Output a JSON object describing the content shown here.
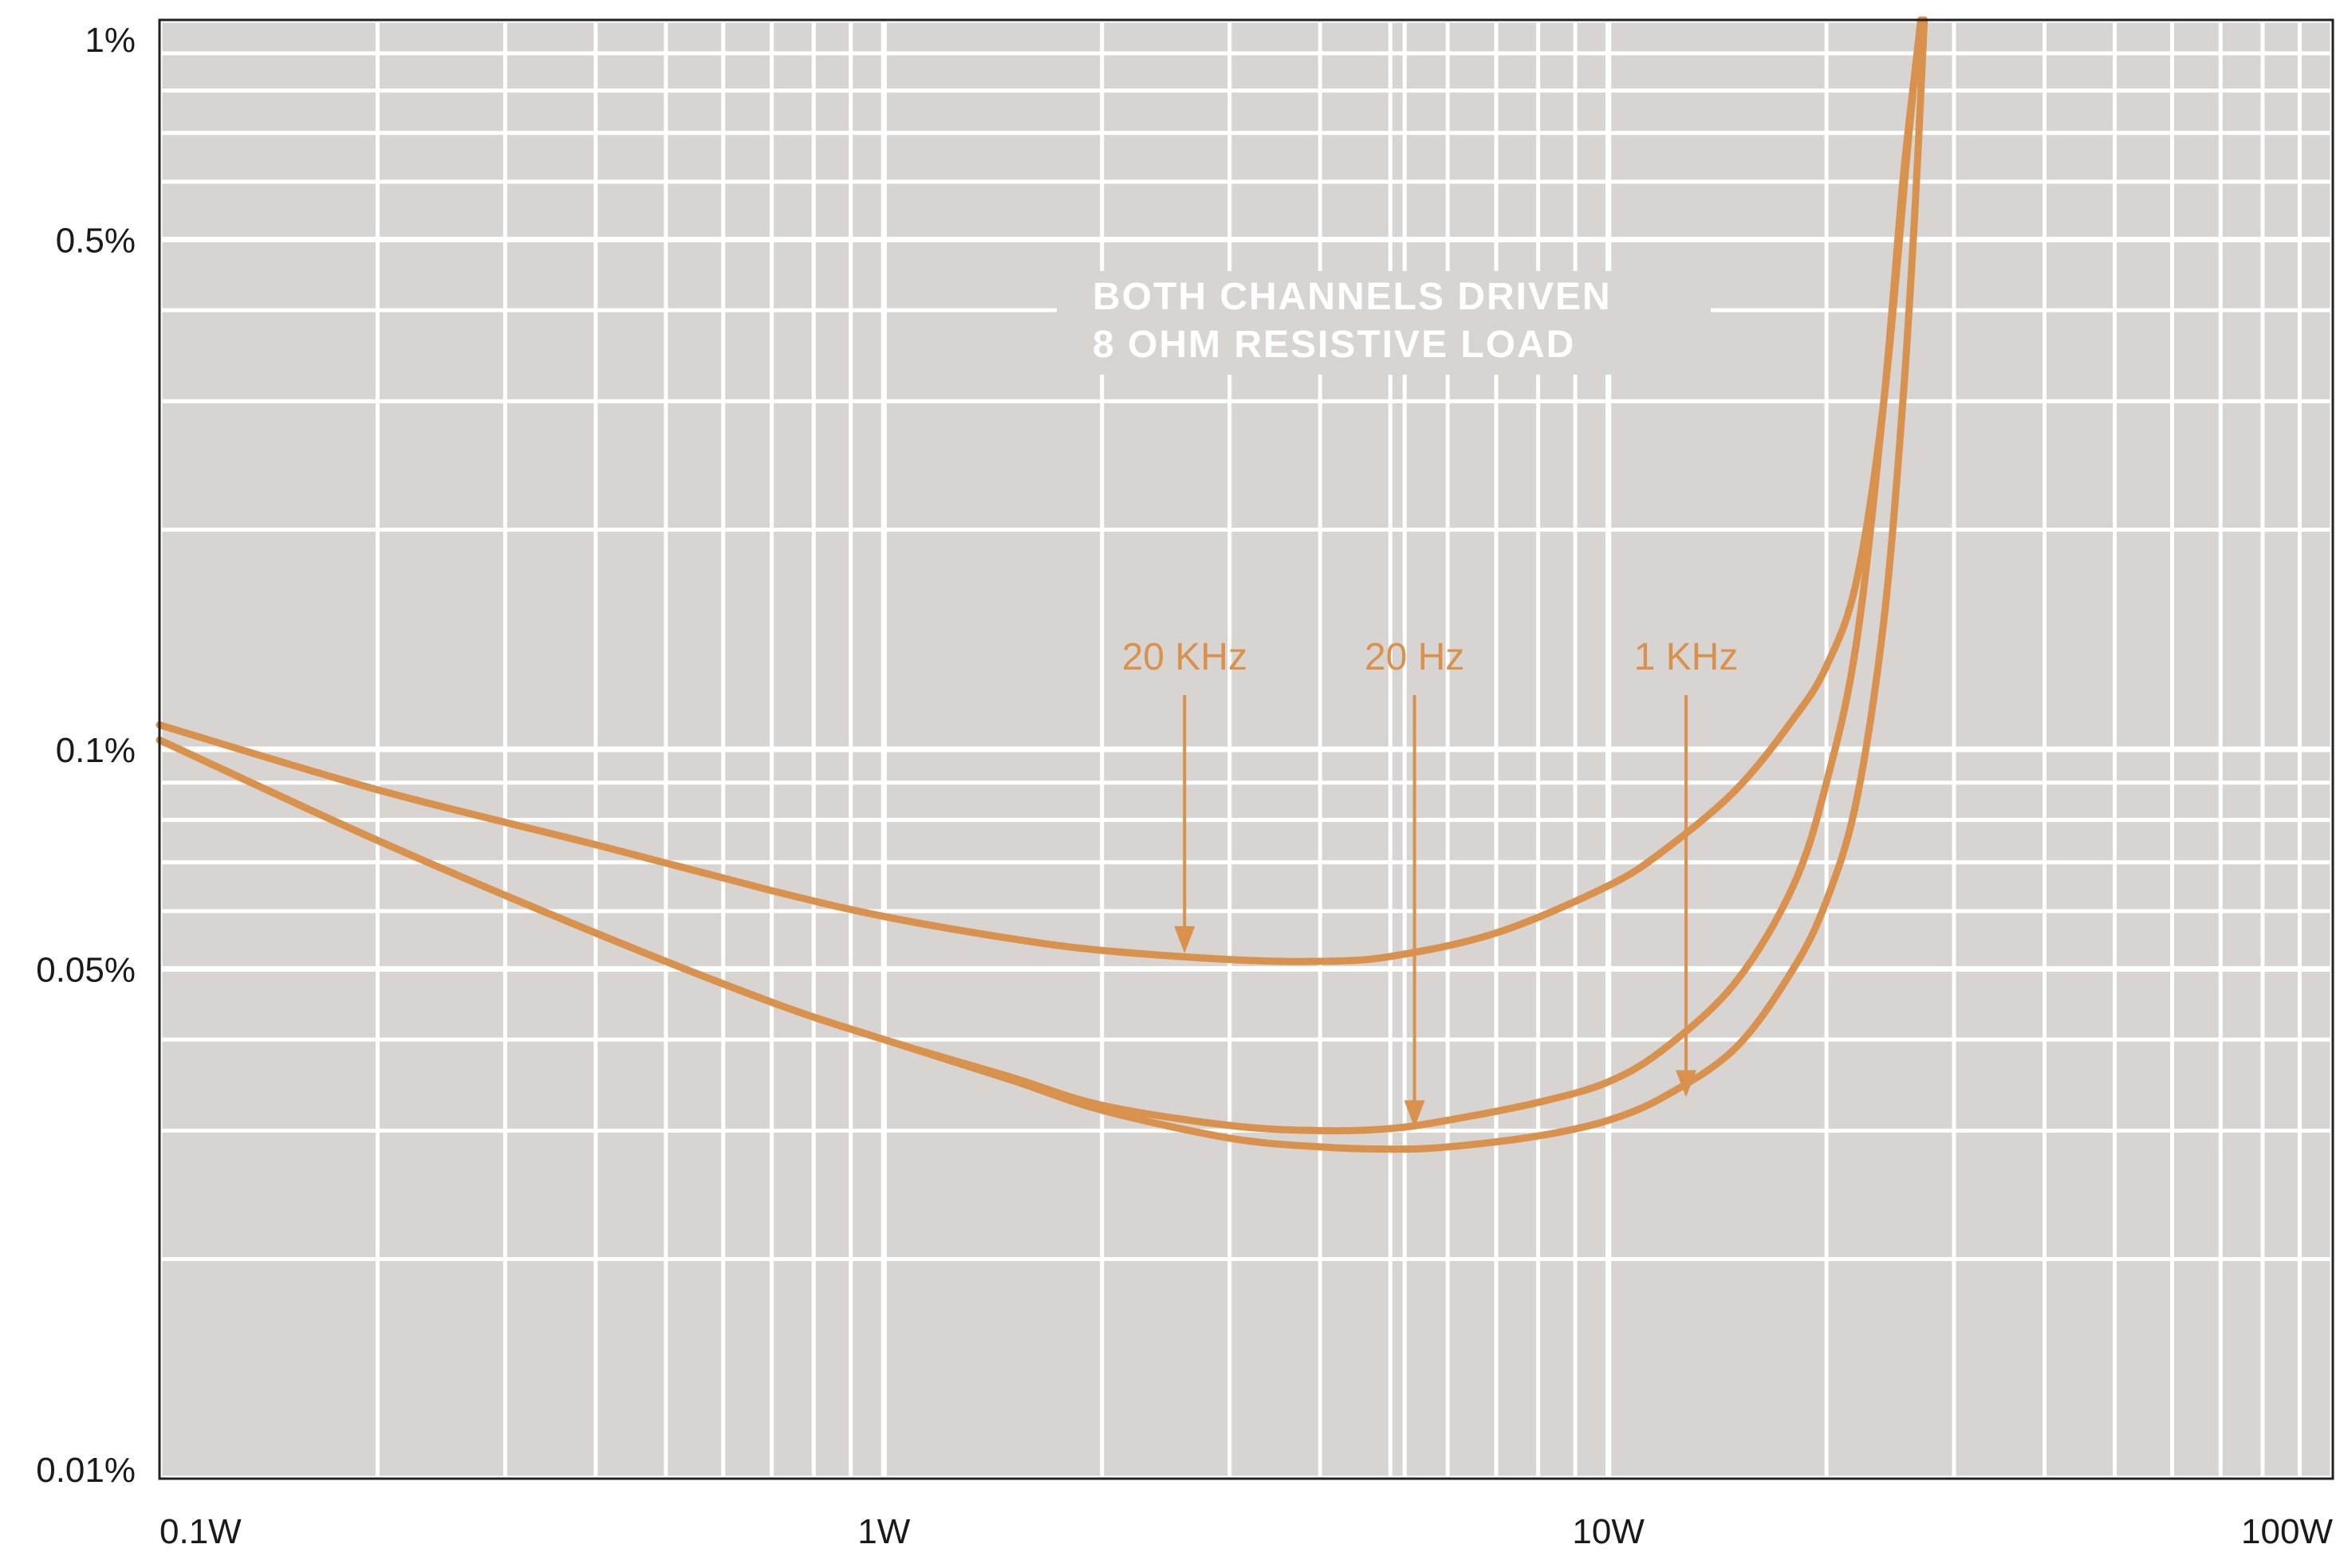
{
  "chart_data": {
    "type": "line",
    "title": "",
    "xlabel": "",
    "ylabel": "",
    "x_scale": "log",
    "y_scale": "log",
    "xlim": [
      0.1,
      100
    ],
    "ylim": [
      0.01,
      1
    ],
    "grid": true,
    "x_ticks": [
      {
        "value": 0.1,
        "label": "0.1W"
      },
      {
        "value": 1,
        "label": "1W"
      },
      {
        "value": 10,
        "label": "10W"
      },
      {
        "value": 100,
        "label": "100W"
      }
    ],
    "y_ticks": [
      {
        "value": 1,
        "label": "1%"
      },
      {
        "value": 0.5,
        "label": "0.5%"
      },
      {
        "value": 0.1,
        "label": "0.1%"
      },
      {
        "value": 0.05,
        "label": "0.05%"
      },
      {
        "value": 0.01,
        "label": "0.01%"
      }
    ],
    "annotation_lines": [
      "BOTH CHANNELS DRIVEN",
      "8 OHM RESISTIVE LOAD"
    ],
    "curve_color": "#d9924e",
    "background_color": "#d8d4d1",
    "grid_color": "#ffffff",
    "series": [
      {
        "name": "20 KHz",
        "arrow_at": [
          2.6,
          0.052
        ],
        "x": [
          0.1,
          0.2,
          0.4,
          0.7,
          1,
          1.5,
          2,
          3,
          4,
          5,
          7,
          10,
          12,
          15,
          18,
          20,
          22,
          24,
          26,
          27
        ],
        "y": [
          0.108,
          0.088,
          0.074,
          0.064,
          0.059,
          0.055,
          0.053,
          0.0515,
          0.0512,
          0.052,
          0.056,
          0.065,
          0.073,
          0.088,
          0.11,
          0.13,
          0.17,
          0.3,
          0.7,
          1.0
        ]
      },
      {
        "name": "20 Hz",
        "arrow_at": [
          5.4,
          0.03
        ],
        "x": [
          0.1,
          0.2,
          0.4,
          0.7,
          1,
          1.5,
          2,
          3,
          4,
          5,
          6,
          8,
          10,
          12,
          15,
          18,
          20,
          22,
          24,
          25.5,
          26.5,
          27
        ],
        "y": [
          0.103,
          0.075,
          0.056,
          0.045,
          0.04,
          0.0355,
          0.0325,
          0.0305,
          0.03,
          0.0302,
          0.031,
          0.0328,
          0.035,
          0.039,
          0.048,
          0.065,
          0.09,
          0.14,
          0.3,
          0.6,
          0.85,
          1.0
        ]
      },
      {
        "name": "1 KHz",
        "arrow_at": [
          12.8,
          0.033
        ],
        "x": [
          0.1,
          0.2,
          0.4,
          0.7,
          1,
          1.5,
          2,
          3,
          4,
          5,
          6,
          8,
          10,
          12,
          15,
          18,
          20,
          22,
          24,
          25.5,
          26.5,
          27.3
        ],
        "y": [
          0.103,
          0.075,
          0.056,
          0.045,
          0.04,
          0.0352,
          0.032,
          0.0293,
          0.0285,
          0.0283,
          0.0285,
          0.0295,
          0.031,
          0.0335,
          0.039,
          0.05,
          0.062,
          0.085,
          0.15,
          0.3,
          0.55,
          1.0
        ]
      }
    ]
  }
}
